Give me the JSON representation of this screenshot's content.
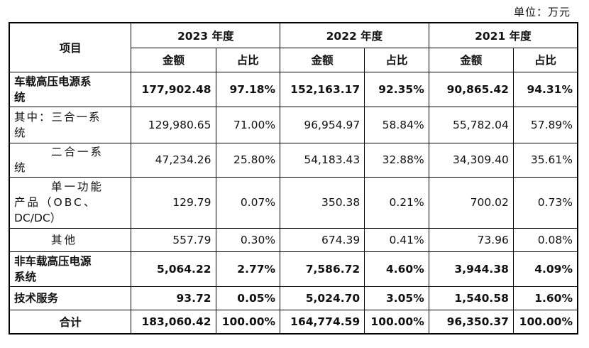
{
  "unit_label": "单位：万元",
  "header": {
    "item": "项目",
    "years": [
      "2023 年度",
      "2022 年度",
      "2021 年度"
    ],
    "amount": "金额",
    "ratio": "占比"
  },
  "rows": [
    {
      "label_l1": "车载高压电源系",
      "label_l2": "统",
      "v": [
        "177,902.48",
        "97.18%",
        "152,163.17",
        "92.35%",
        "90,865.42",
        "94.31%"
      ]
    },
    {
      "label_l1": "其中：三合一系",
      "label_l2": "统",
      "v": [
        "129,980.65",
        "71.00%",
        "96,954.97",
        "58.84%",
        "55,782.04",
        "57.89%"
      ]
    },
    {
      "label_l1": "二合一系",
      "label_l2": "统",
      "v": [
        "47,234.26",
        "25.80%",
        "54,183.43",
        "32.88%",
        "34,309.40",
        "35.61%"
      ]
    },
    {
      "label_l1": "单一功能",
      "label_l2": "产品（OBC、",
      "label_l3": "DC/DC）",
      "v": [
        "129.79",
        "0.07%",
        "350.38",
        "0.21%",
        "700.02",
        "0.73%"
      ]
    },
    {
      "label_l1": "其他",
      "v": [
        "557.79",
        "0.30%",
        "674.39",
        "0.41%",
        "73.96",
        "0.08%"
      ]
    },
    {
      "label_l1": "非车载高压电源",
      "label_l2": "系统",
      "v": [
        "5,064.22",
        "2.77%",
        "7,586.72",
        "4.60%",
        "3,944.38",
        "4.09%"
      ]
    },
    {
      "label_l1": "技术服务",
      "v": [
        "93.72",
        "0.05%",
        "5,024.70",
        "3.05%",
        "1,540.58",
        "1.60%"
      ]
    },
    {
      "label_l1": "合计",
      "v": [
        "183,060.42",
        "100.00%",
        "164,774.59",
        "100.00%",
        "96,350.37",
        "100.00%"
      ]
    }
  ]
}
